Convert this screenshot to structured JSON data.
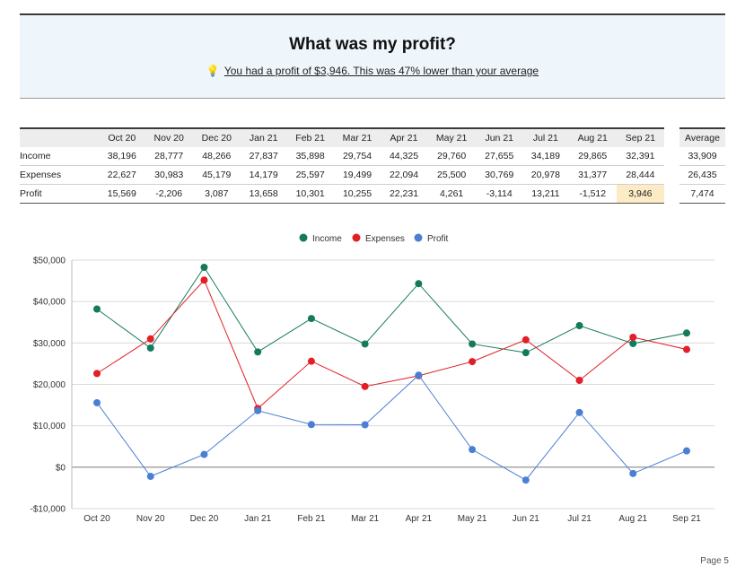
{
  "banner": {
    "title": "What was my profit?",
    "bulb": "💡",
    "subtitle": "You had a profit of $3,946. This was 47% lower than your average"
  },
  "table": {
    "months": [
      "Oct 20",
      "Nov 20",
      "Dec 20",
      "Jan 21",
      "Feb 21",
      "Mar 21",
      "Apr 21",
      "May 21",
      "Jun 21",
      "Jul 21",
      "Aug 21",
      "Sep 21"
    ],
    "rows": [
      {
        "label": "Income",
        "values": [
          "38,196",
          "28,777",
          "48,266",
          "27,837",
          "35,898",
          "29,754",
          "44,325",
          "29,760",
          "27,655",
          "34,189",
          "29,865",
          "32,391"
        ]
      },
      {
        "label": "Expenses",
        "values": [
          "22,627",
          "30,983",
          "45,179",
          "14,179",
          "25,597",
          "19,499",
          "22,094",
          "25,500",
          "30,769",
          "20,978",
          "31,377",
          "28,444"
        ]
      },
      {
        "label": "Profit",
        "values": [
          "15,569",
          "-2,206",
          "3,087",
          "13,658",
          "10,301",
          "10,255",
          "22,231",
          "4,261",
          "-3,114",
          "13,211",
          "-1,512",
          "3,946"
        ]
      }
    ],
    "average_header": "Average",
    "averages": [
      "33,909",
      "26,435",
      "7,474"
    ]
  },
  "colors": {
    "income": "#137a5b",
    "expenses": "#e21e26",
    "profit": "#4a7fd4"
  },
  "chart_data": {
    "type": "line",
    "x": [
      "Oct 20",
      "Nov 20",
      "Dec 20",
      "Jan 21",
      "Feb 21",
      "Mar 21",
      "Apr 21",
      "May 21",
      "Jun 21",
      "Jul 21",
      "Aug 21",
      "Sep 21"
    ],
    "series": [
      {
        "name": "Income",
        "values": [
          38196,
          28777,
          48266,
          27837,
          35898,
          29754,
          44325,
          29760,
          27655,
          34189,
          29865,
          32391
        ]
      },
      {
        "name": "Expenses",
        "values": [
          22627,
          30983,
          45179,
          14179,
          25597,
          19499,
          22094,
          25500,
          30769,
          20978,
          31377,
          28444
        ]
      },
      {
        "name": "Profit",
        "values": [
          15569,
          -2206,
          3087,
          13658,
          10301,
          10255,
          22231,
          4261,
          -3114,
          13211,
          -1512,
          3946
        ]
      }
    ],
    "ylim": [
      -10000,
      50000
    ],
    "yticks": [
      -10000,
      0,
      10000,
      20000,
      30000,
      40000,
      50000
    ],
    "ytick_labels": [
      "-$10,000",
      "$0",
      "$10,000",
      "$20,000",
      "$30,000",
      "$40,000",
      "$50,000"
    ],
    "legend_position": "top-center",
    "grid": true
  },
  "page_number": "Page 5"
}
